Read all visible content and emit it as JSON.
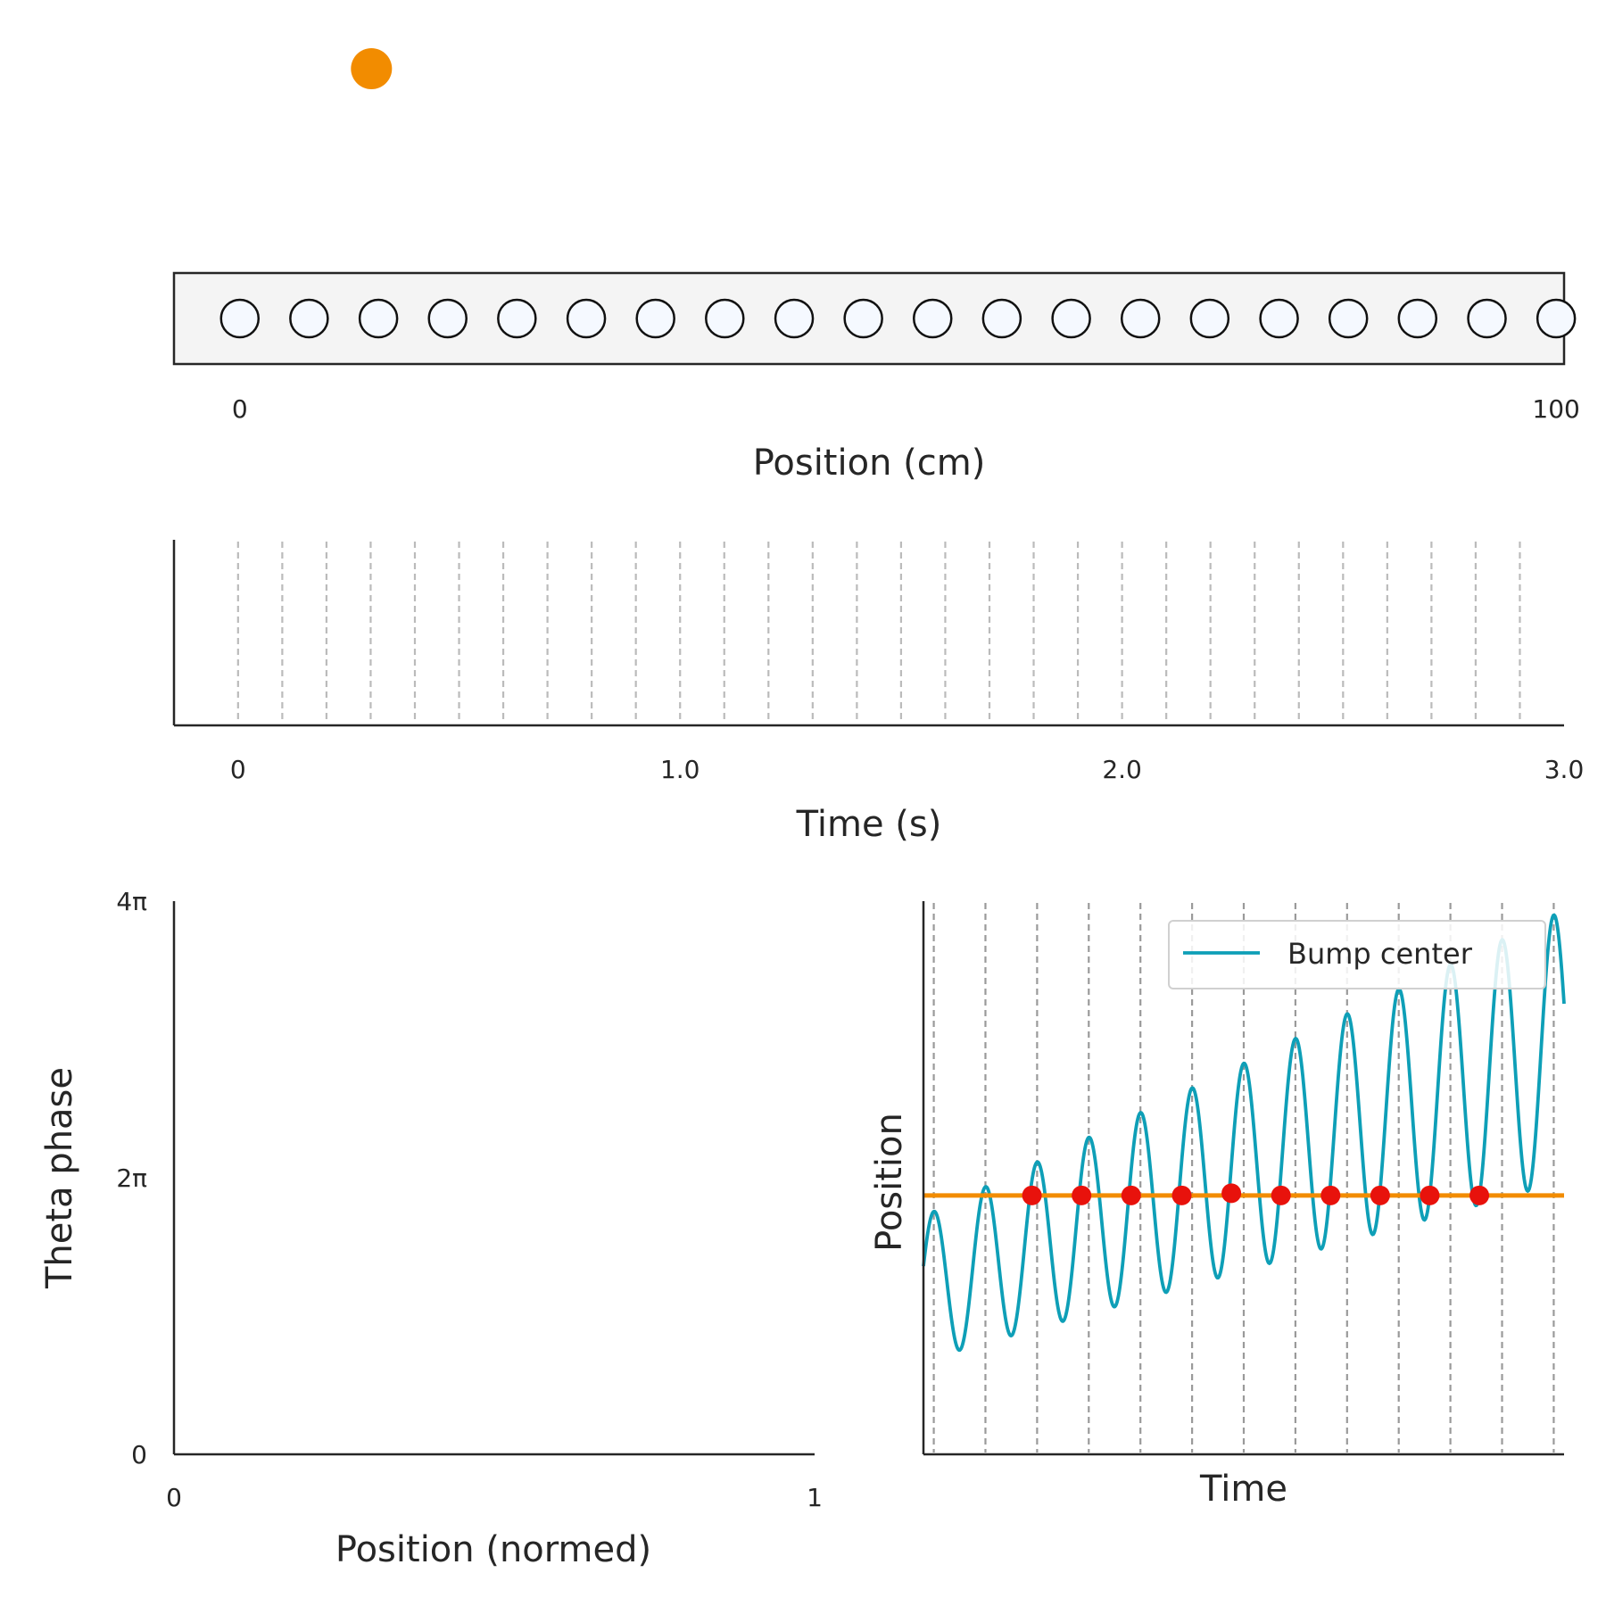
{
  "chart_data": [
    {
      "id": "track",
      "type": "scatter",
      "description_free": true,
      "agent_position": 10,
      "cell_centers": [
        0,
        5.26,
        10.53,
        15.79,
        21.05,
        26.32,
        31.58,
        36.84,
        42.11,
        47.37,
        52.63,
        57.89,
        63.16,
        68.42,
        73.68,
        78.95,
        84.21,
        89.47,
        94.74,
        100
      ],
      "xlim": [
        -5,
        100.6
      ],
      "xticks": [
        0,
        100
      ],
      "xtick_labels": [
        "0",
        "100"
      ],
      "xlabel": "Position (cm)",
      "colors": {
        "agent": "#F28C00",
        "cell_fill": "#F5F9FF",
        "cell_edge": "#111111",
        "track_fill": "#F4F4F4"
      }
    },
    {
      "id": "theta_cycles",
      "type": "line",
      "cycle_times": [
        0,
        0.1,
        0.2,
        0.3,
        0.4,
        0.5,
        0.6,
        0.7,
        0.8,
        0.9,
        1.0,
        1.1,
        1.2,
        1.3,
        1.4,
        1.5,
        1.6,
        1.7,
        1.8,
        1.9,
        2.0,
        2.1,
        2.2,
        2.3,
        2.4,
        2.5,
        2.6,
        2.7,
        2.8,
        2.9
      ],
      "xlim": [
        -0.145,
        3.0
      ],
      "xticks": [
        0,
        1.0,
        2.0,
        3.0
      ],
      "xtick_labels": [
        "0",
        "1.0",
        "2.0",
        "3.0"
      ],
      "xlabel": "Time (s)",
      "colors": {
        "cycle_line": "#BBBBBB"
      }
    },
    {
      "id": "phase_precession",
      "type": "scatter",
      "points": [],
      "xlim": [
        0,
        1
      ],
      "ylim": [
        0,
        12.566
      ],
      "xticks": [
        0,
        1
      ],
      "xtick_labels": [
        "0",
        "1"
      ],
      "yticks": [
        0,
        6.283,
        12.566
      ],
      "ytick_labels": [
        "0",
        "2π",
        "4π"
      ],
      "xlabel": "Position (normed)",
      "ylabel": "Theta phase"
    },
    {
      "id": "bump_dynamics",
      "type": "line",
      "xlabel": "Time",
      "ylabel": "Position",
      "legend": {
        "entries": [
          "Bump center"
        ],
        "placement": "top-right"
      },
      "xlim": [
        0,
        6.2
      ],
      "ylim": [
        0,
        1
      ],
      "cycle_times": [
        0.1,
        0.6,
        1.1,
        1.6,
        2.1,
        2.6,
        3.1,
        3.6,
        4.1,
        4.6,
        5.1,
        5.6,
        6.1
      ],
      "bump": {
        "period": 0.5,
        "first_peak_time": 0.1,
        "center_start": 0.3,
        "center_slope": 0.0708,
        "amp_start": 0.13,
        "amp_slope": 0.0185,
        "t_start": 0,
        "t_end": 6.2
      },
      "animal_position": 0.468,
      "crossings_t": [
        1.05,
        1.53,
        2.01,
        2.5,
        2.98,
        3.46,
        3.94,
        4.42,
        4.9,
        5.38
      ],
      "crossings_y": [
        0.468,
        0.468,
        0.468,
        0.468,
        0.472,
        0.468,
        0.468,
        0.468,
        0.468,
        0.468
      ],
      "colors": {
        "bump": "#0E9FB7",
        "animal": "#F28C00",
        "crossing": "#E8120C",
        "cycle_line": "#9A9A9A"
      }
    }
  ]
}
